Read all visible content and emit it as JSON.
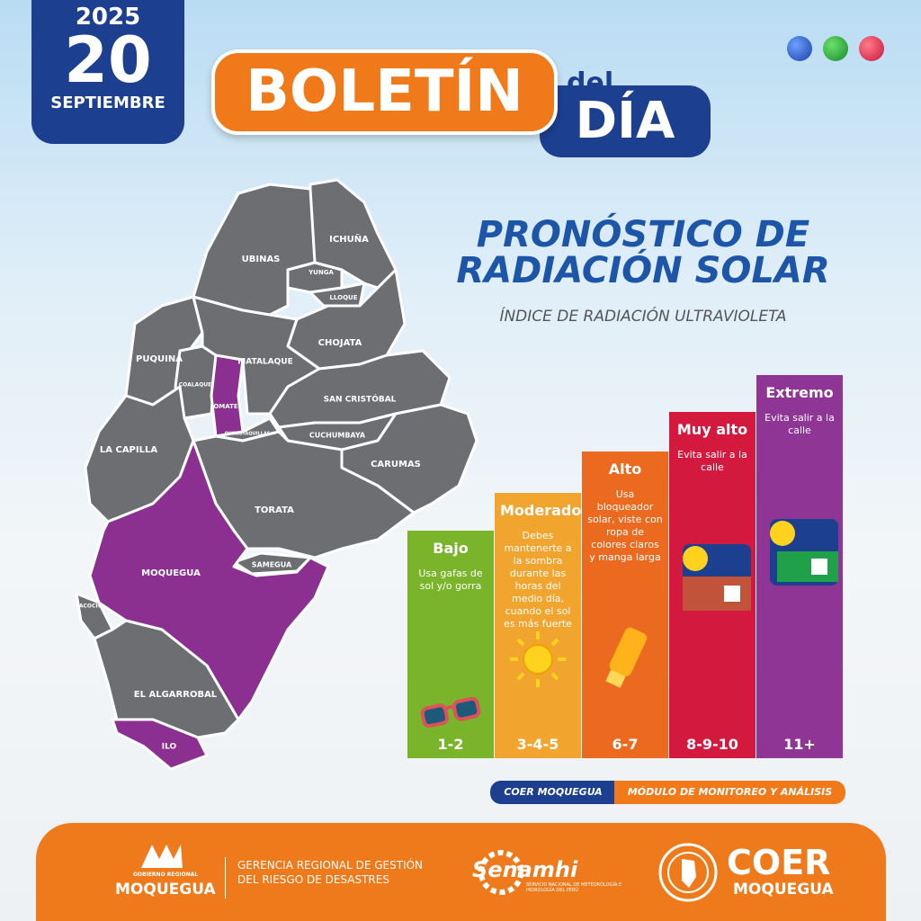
{
  "header": {
    "year": "2025",
    "day": "20",
    "month": "SEPTIEMBRE",
    "title_1": "BOLETÍN",
    "title_2": "del",
    "title_3": "DÍA"
  },
  "section": {
    "title_1": "PRONÓSTICO DE",
    "title_2": "RADIACIÓN SOLAR",
    "subtitle": "ÍNDICE DE RADIACIÓN ULTRAVIOLETA"
  },
  "map": {
    "districts": [
      {
        "name": "ICHUÑA",
        "color": "#6d6e71"
      },
      {
        "name": "UBINAS",
        "color": "#6d6e71"
      },
      {
        "name": "YUNGA",
        "color": "#6d6e71"
      },
      {
        "name": "LLOQUE",
        "color": "#6d6e71"
      },
      {
        "name": "CHOJATA",
        "color": "#6d6e71"
      },
      {
        "name": "PUQUINA",
        "color": "#6d6e71"
      },
      {
        "name": "COALAQUE",
        "color": "#6d6e71"
      },
      {
        "name": "OMATE",
        "color": "#8b3090"
      },
      {
        "name": "MATALAQUE",
        "color": "#6d6e71"
      },
      {
        "name": "QUINISTAQUILLAS",
        "color": "#6d6e71"
      },
      {
        "name": "SAN CRISTÓBAL",
        "color": "#6d6e71"
      },
      {
        "name": "CUCHUMBAYA",
        "color": "#6d6e71"
      },
      {
        "name": "CARUMAS",
        "color": "#6d6e71"
      },
      {
        "name": "LA CAPILLA",
        "color": "#6d6e71"
      },
      {
        "name": "TORATA",
        "color": "#6d6e71"
      },
      {
        "name": "SAMEGUA",
        "color": "#6d6e71"
      },
      {
        "name": "MOQUEGUA",
        "color": "#8b3090"
      },
      {
        "name": "PACOCHA",
        "color": "#6d6e71"
      },
      {
        "name": "EL ALGARROBAL",
        "color": "#6d6e71"
      },
      {
        "name": "ILO",
        "color": "#8b3090"
      }
    ]
  },
  "uv_scale": {
    "levels": [
      {
        "name": "Bajo",
        "advice": "Usa gafas de sol y/o gorra",
        "range": "1-2",
        "color": "#7ab42a"
      },
      {
        "name": "Moderado",
        "advice": "Debes mantenerte a la sombra durante las horas del medio día, cuando el sol es más fuerte",
        "range": "3-4-5",
        "color": "#f2a52e"
      },
      {
        "name": "Alto",
        "advice": "Usa bloqueador solar, viste con ropa de colores claros y manga larga",
        "range": "6-7",
        "color": "#ec6a1f"
      },
      {
        "name": "Muy alto",
        "advice": "Evita salir a la calle",
        "range": "8-9-10",
        "color": "#d3193d"
      },
      {
        "name": "Extremo",
        "advice": "Evita salir a la calle",
        "range": "11+",
        "color": "#8e3596"
      }
    ]
  },
  "tag": {
    "left": "COER MOQUEGUA",
    "right": "MÓDULO DE MONITOREO Y ANÁLISIS"
  },
  "footer": {
    "gore_small": "GOBIERNO REGIONAL",
    "gore": "MOQUEGUA",
    "office_1": "GERENCIA REGIONAL DE GESTIÓN",
    "office_2": "DEL RIESGO DE DESASTRES",
    "senamhi": "Senamhi",
    "senamhi_sub": "SERVICIO NACIONAL DE METEOROLOGÍA E HIDROLOGÍA DEL PERÚ",
    "coer": "COER",
    "coer_sub": "MOQUEGUA"
  }
}
